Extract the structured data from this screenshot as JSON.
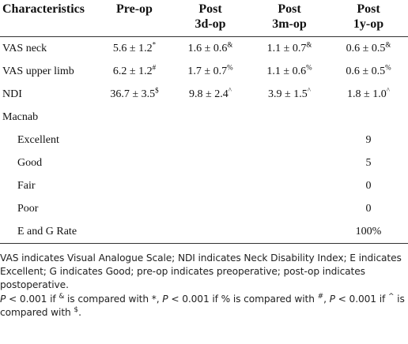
{
  "table": {
    "header": [
      "Characteristics",
      "Pre-op",
      "Post\n3d-op",
      "Post\n3m-op",
      "Post\n1y-op"
    ],
    "rows": [
      {
        "cells": [
          {
            "text": "VAS neck"
          },
          {
            "text": "5.6 ± 1.2",
            "sup": "*"
          },
          {
            "text": "1.6 ± 0.6",
            "sup": "&"
          },
          {
            "text": "1.1 ± 0.7",
            "sup": "&"
          },
          {
            "text": "0.6 ± 0.5",
            "sup": "&"
          }
        ]
      },
      {
        "cells": [
          {
            "text": "VAS upper limb"
          },
          {
            "text": "6.2 ± 1.2",
            "sup": "#"
          },
          {
            "text": "1.7 ± 0.7",
            "sup": "%"
          },
          {
            "text": "1.1 ± 0.6",
            "sup": "%"
          },
          {
            "text": "0.6 ± 0.5",
            "sup": "%"
          }
        ]
      },
      {
        "cells": [
          {
            "text": "NDI"
          },
          {
            "text": "36.7 ± 3.5",
            "sup": "$"
          },
          {
            "text": "9.8 ± 2.4",
            "sup": "^"
          },
          {
            "text": "3.9 ± 1.5",
            "sup": "^"
          },
          {
            "text": "1.8 ± 1.0",
            "sup": "^"
          }
        ]
      },
      {
        "cells": [
          {
            "text": "Macnab"
          },
          null,
          null,
          null,
          null
        ]
      },
      {
        "indent": true,
        "cells": [
          {
            "text": "Excellent"
          },
          null,
          null,
          null,
          {
            "text": "9"
          }
        ]
      },
      {
        "indent": true,
        "cells": [
          {
            "text": "Good"
          },
          null,
          null,
          null,
          {
            "text": "5"
          }
        ]
      },
      {
        "indent": true,
        "cells": [
          {
            "text": "Fair"
          },
          null,
          null,
          null,
          {
            "text": "0"
          }
        ]
      },
      {
        "indent": true,
        "cells": [
          {
            "text": "Poor"
          },
          null,
          null,
          null,
          {
            "text": "0"
          }
        ]
      },
      {
        "indent": true,
        "cells": [
          {
            "text": "E and G Rate"
          },
          null,
          null,
          null,
          {
            "text": "100%"
          }
        ]
      }
    ],
    "notes": [
      "VAS indicates Visual Analogue Scale; NDI indicates Neck Disability Index; E indicates Excellent; G indicates Good; pre-op indicates preoperative; post-op indicates postoperative.",
      [
        {
          "text": "P",
          "style": "italic"
        },
        {
          "text": " < 0.001 if "
        },
        {
          "text": "&",
          "style": "sup"
        },
        {
          "text": " is compared with *, "
        },
        {
          "text": "P",
          "style": "italic"
        },
        {
          "text": " < 0.001 if % is compared with "
        },
        {
          "text": "#",
          "style": "sup"
        },
        {
          "text": ", "
        },
        {
          "text": "P",
          "style": "italic"
        },
        {
          "text": " < 0.001 if "
        },
        {
          "text": "^",
          "style": "sup"
        },
        {
          "text": " is compared with "
        },
        {
          "text": "$",
          "style": "sup"
        },
        {
          "text": "."
        }
      ]
    ]
  }
}
